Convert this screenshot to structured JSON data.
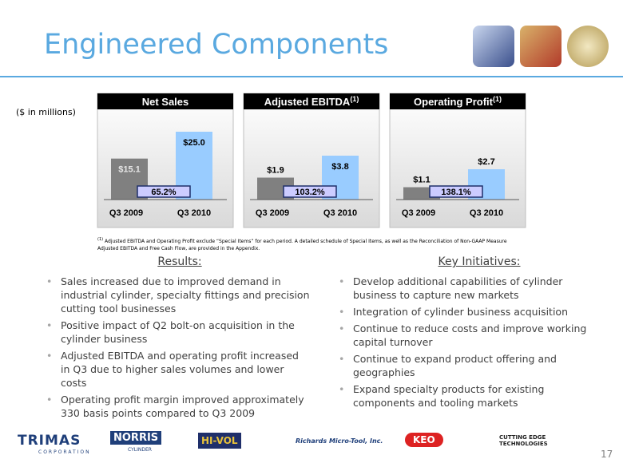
{
  "header": {
    "title": "Engineered Components"
  },
  "unit_note": "($ in millions)",
  "chart_data": [
    {
      "type": "bar",
      "title": "Net Sales",
      "categories": [
        "Q3 2009",
        "Q3 2010"
      ],
      "values": [
        15.1,
        25.0
      ],
      "value_labels": [
        "$15.1",
        "$25.0"
      ],
      "colors": [
        "#808080",
        "#99ccff"
      ],
      "annotation": "65.2%"
    },
    {
      "type": "bar",
      "title": "Adjusted EBITDA",
      "title_note": "(1)",
      "categories": [
        "Q3 2009",
        "Q3 2010"
      ],
      "values": [
        1.9,
        3.8
      ],
      "value_labels": [
        "$1.9",
        "$3.8"
      ],
      "colors": [
        "#808080",
        "#99ccff"
      ],
      "annotation": "103.2%"
    },
    {
      "type": "bar",
      "title": "Operating Profit",
      "title_note": "(1)",
      "categories": [
        "Q3 2009",
        "Q3 2010"
      ],
      "values": [
        1.1,
        2.7
      ],
      "value_labels": [
        "$1.1",
        "$2.7"
      ],
      "colors": [
        "#808080",
        "#99ccff"
      ],
      "annotation": "138.1%"
    }
  ],
  "footnote": {
    "mark": "(1)",
    "text": "Adjusted EBITDA and Operating Profit exclude “Special Items” for each period. A detailed schedule of Special Items, as well as the Reconciliation of Non-GAAP Measure Adjusted EBITDA and Free Cash Flow, are provided in the Appendix."
  },
  "results": {
    "heading": "Results:",
    "bullets": [
      "Sales increased due to improved demand in industrial cylinder, specialty fittings and precision cutting tool businesses",
      "Positive impact of Q2 bolt-on acquisition in the cylinder business",
      "Adjusted EBITDA and operating profit increased in Q3 due to higher sales volumes and lower costs",
      "Operating profit margin improved approximately 330 basis points compared to Q3 2009"
    ]
  },
  "initiatives": {
    "heading": "Key Initiatives:",
    "bullets": [
      "Develop additional capabilities of cylinder business to capture new markets",
      "Integration of cylinder business acquisition",
      "Continue to reduce costs and improve working capital turnover",
      "Continue to expand product offering and geographies",
      "Expand specialty products for existing components and tooling markets"
    ]
  },
  "logos": {
    "trimas": "TRIMAS",
    "trimas_sub": "CORPORATION",
    "norris": "NORRIS",
    "norris_sub": "CYLINDER",
    "hivol": "HI-VOL",
    "richards": "Richards Micro-Tool, Inc.",
    "keo": "KEO",
    "cet": "CUTTING EDGE TECHNOLOGIES"
  },
  "page_number": "17"
}
